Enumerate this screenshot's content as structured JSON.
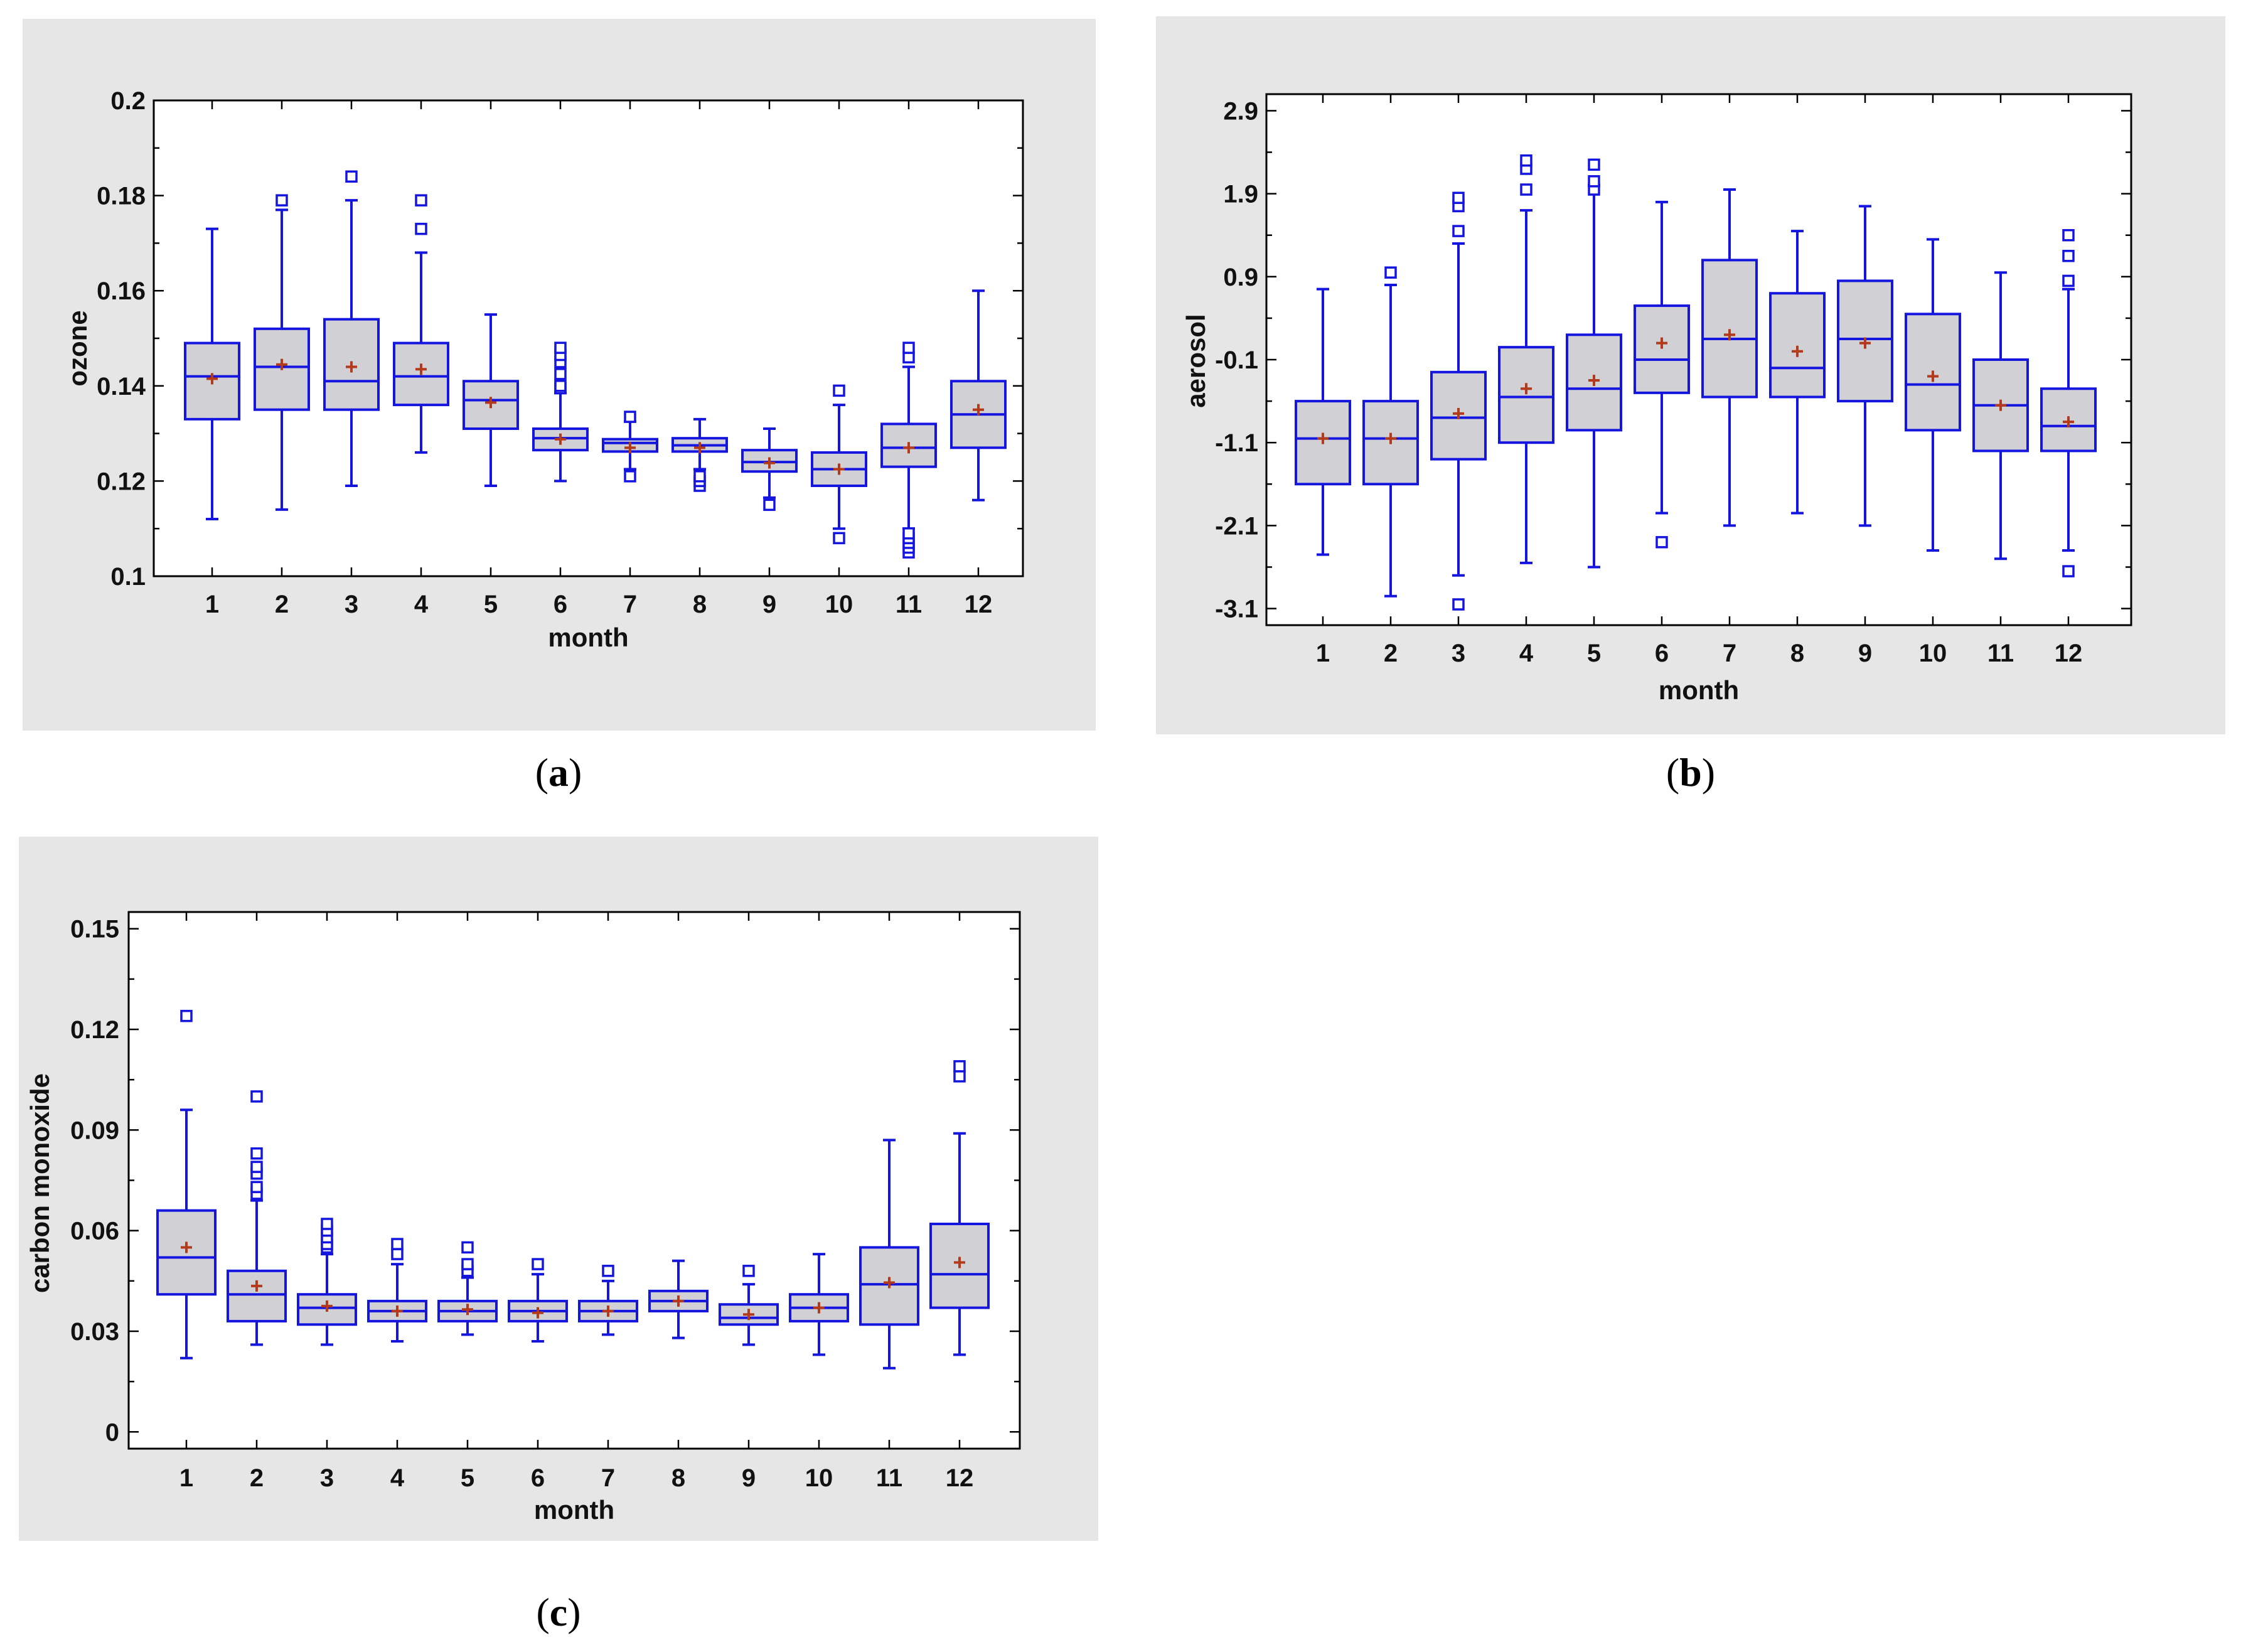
{
  "figure": {
    "captions": [
      {
        "open": "(",
        "letter": "a",
        "close": ")"
      },
      {
        "open": "(",
        "letter": "b",
        "close": ")"
      },
      {
        "open": "(",
        "letter": "c",
        "close": ")"
      }
    ]
  },
  "chart_data": [
    {
      "id": "a",
      "type": "boxplot",
      "title": "",
      "xlabel": "month",
      "ylabel": "ozone",
      "ylim": [
        0.1,
        0.2
      ],
      "yticks": [
        0.1,
        0.12,
        0.14,
        0.16,
        0.18,
        0.2
      ],
      "ytick_labels": [
        "0.1",
        "0.12",
        "0.14",
        "0.16",
        "0.18",
        "0.2"
      ],
      "categories": [
        "1",
        "2",
        "3",
        "4",
        "5",
        "6",
        "7",
        "8",
        "9",
        "10",
        "11",
        "12"
      ],
      "boxes": [
        {
          "min": 0.112,
          "q1": 0.133,
          "median": 0.142,
          "q3": 0.149,
          "max": 0.173,
          "mean": 0.1415,
          "outliers": []
        },
        {
          "min": 0.114,
          "q1": 0.135,
          "median": 0.144,
          "q3": 0.152,
          "max": 0.177,
          "mean": 0.1445,
          "outliers": [
            0.179
          ]
        },
        {
          "min": 0.119,
          "q1": 0.135,
          "median": 0.141,
          "q3": 0.154,
          "max": 0.179,
          "mean": 0.144,
          "outliers": [
            0.184
          ]
        },
        {
          "min": 0.126,
          "q1": 0.136,
          "median": 0.142,
          "q3": 0.149,
          "max": 0.168,
          "mean": 0.1435,
          "outliers": [
            0.173,
            0.179
          ]
        },
        {
          "min": 0.119,
          "q1": 0.131,
          "median": 0.137,
          "q3": 0.141,
          "max": 0.155,
          "mean": 0.1365,
          "outliers": []
        },
        {
          "min": 0.12,
          "q1": 0.1265,
          "median": 0.129,
          "q3": 0.131,
          "max": 0.1385,
          "mean": 0.1288,
          "outliers": [
            0.1395,
            0.14,
            0.1425,
            0.145,
            0.1465,
            0.148
          ]
        },
        {
          "min": 0.1225,
          "q1": 0.1262,
          "median": 0.128,
          "q3": 0.1288,
          "max": 0.1325,
          "mean": 0.127,
          "outliers": [
            0.121,
            0.1335
          ]
        },
        {
          "min": 0.1225,
          "q1": 0.1262,
          "median": 0.1275,
          "q3": 0.129,
          "max": 0.133,
          "mean": 0.127,
          "outliers": [
            0.119,
            0.12,
            0.121
          ]
        },
        {
          "min": 0.1165,
          "q1": 0.122,
          "median": 0.124,
          "q3": 0.1265,
          "max": 0.131,
          "mean": 0.1238,
          "outliers": [
            0.115
          ]
        },
        {
          "min": 0.11,
          "q1": 0.119,
          "median": 0.1225,
          "q3": 0.126,
          "max": 0.136,
          "mean": 0.1225,
          "outliers": [
            0.108,
            0.139
          ]
        },
        {
          "min": 0.11,
          "q1": 0.123,
          "median": 0.127,
          "q3": 0.132,
          "max": 0.144,
          "mean": 0.127,
          "outliers": [
            0.105,
            0.106,
            0.107,
            0.108,
            0.109,
            0.146,
            0.148
          ]
        },
        {
          "min": 0.116,
          "q1": 0.127,
          "median": 0.134,
          "q3": 0.141,
          "max": 0.16,
          "mean": 0.135,
          "outliers": []
        }
      ]
    },
    {
      "id": "b",
      "type": "boxplot",
      "title": "",
      "xlabel": "month",
      "ylabel": "aerosol",
      "ylim": [
        -3.3,
        3.1
      ],
      "yticks": [
        -3.1,
        -2.1,
        -1.1,
        -0.1,
        0.9,
        1.9,
        2.9
      ],
      "ytick_labels": [
        "-3.1",
        "-2.1",
        "-1.1",
        "-0.1",
        "0.9",
        "1.9",
        "2.9"
      ],
      "categories": [
        "1",
        "2",
        "3",
        "4",
        "5",
        "6",
        "7",
        "8",
        "9",
        "10",
        "11",
        "12"
      ],
      "boxes": [
        {
          "min": -2.45,
          "q1": -1.6,
          "median": -1.05,
          "q3": -0.6,
          "max": 0.75,
          "mean": -1.05,
          "outliers": []
        },
        {
          "min": -2.95,
          "q1": -1.6,
          "median": -1.05,
          "q3": -0.6,
          "max": 0.8,
          "mean": -1.05,
          "outliers": [
            0.95
          ]
        },
        {
          "min": -2.7,
          "q1": -1.3,
          "median": -0.8,
          "q3": -0.25,
          "max": 1.3,
          "mean": -0.75,
          "outliers": [
            -3.05,
            1.45,
            1.75,
            1.85
          ]
        },
        {
          "min": -2.55,
          "q1": -1.1,
          "median": -0.55,
          "q3": 0.05,
          "max": 1.7,
          "mean": -0.45,
          "outliers": [
            1.95,
            2.2,
            2.3
          ]
        },
        {
          "min": -2.6,
          "q1": -0.95,
          "median": -0.45,
          "q3": 0.2,
          "max": 2.0,
          "mean": -0.35,
          "outliers": [
            1.95,
            2.05,
            2.25
          ]
        },
        {
          "min": -1.95,
          "q1": -0.5,
          "median": -0.1,
          "q3": 0.55,
          "max": 1.8,
          "mean": 0.1,
          "outliers": [
            -2.3
          ]
        },
        {
          "min": -2.1,
          "q1": -0.55,
          "median": 0.15,
          "q3": 1.1,
          "max": 1.95,
          "mean": 0.2,
          "outliers": []
        },
        {
          "min": -1.95,
          "q1": -0.55,
          "median": -0.2,
          "q3": 0.7,
          "max": 1.45,
          "mean": 0.0,
          "outliers": []
        },
        {
          "min": -2.1,
          "q1": -0.6,
          "median": 0.15,
          "q3": 0.85,
          "max": 1.75,
          "mean": 0.1,
          "outliers": []
        },
        {
          "min": -2.4,
          "q1": -0.95,
          "median": -0.4,
          "q3": 0.45,
          "max": 1.35,
          "mean": -0.3,
          "outliers": []
        },
        {
          "min": -2.5,
          "q1": -1.2,
          "median": -0.65,
          "q3": -0.1,
          "max": 0.95,
          "mean": -0.65,
          "outliers": []
        },
        {
          "min": -2.4,
          "q1": -1.2,
          "median": -0.9,
          "q3": -0.45,
          "max": 0.75,
          "mean": -0.85,
          "outliers": [
            -2.65,
            0.85,
            1.15,
            1.4
          ]
        }
      ]
    },
    {
      "id": "c",
      "type": "boxplot",
      "title": "",
      "xlabel": "month",
      "ylabel": "carbon monoxide",
      "ylim": [
        -0.005,
        0.155
      ],
      "yticks": [
        0,
        0.03,
        0.06,
        0.09,
        0.12,
        0.15
      ],
      "ytick_labels": [
        "0",
        "0.03",
        "0.06",
        "0.09",
        "0.12",
        "0.15"
      ],
      "categories": [
        "1",
        "2",
        "3",
        "4",
        "5",
        "6",
        "7",
        "8",
        "9",
        "10",
        "11",
        "12"
      ],
      "boxes": [
        {
          "min": 0.022,
          "q1": 0.041,
          "median": 0.052,
          "q3": 0.066,
          "max": 0.096,
          "mean": 0.055,
          "outliers": [
            0.124
          ]
        },
        {
          "min": 0.026,
          "q1": 0.033,
          "median": 0.041,
          "q3": 0.048,
          "max": 0.069,
          "mean": 0.0435,
          "outliers": [
            0.071,
            0.073,
            0.077,
            0.079,
            0.083,
            0.1
          ]
        },
        {
          "min": 0.026,
          "q1": 0.032,
          "median": 0.037,
          "q3": 0.041,
          "max": 0.053,
          "mean": 0.0375,
          "outliers": [
            0.055,
            0.056,
            0.058,
            0.06,
            0.062
          ]
        },
        {
          "min": 0.027,
          "q1": 0.033,
          "median": 0.036,
          "q3": 0.039,
          "max": 0.05,
          "mean": 0.036,
          "outliers": [
            0.053,
            0.056
          ]
        },
        {
          "min": 0.029,
          "q1": 0.033,
          "median": 0.036,
          "q3": 0.039,
          "max": 0.046,
          "mean": 0.0365,
          "outliers": [
            0.048,
            0.05,
            0.055
          ]
        },
        {
          "min": 0.027,
          "q1": 0.033,
          "median": 0.036,
          "q3": 0.039,
          "max": 0.047,
          "mean": 0.0355,
          "outliers": [
            0.05
          ]
        },
        {
          "min": 0.029,
          "q1": 0.033,
          "median": 0.036,
          "q3": 0.039,
          "max": 0.045,
          "mean": 0.036,
          "outliers": [
            0.048
          ]
        },
        {
          "min": 0.028,
          "q1": 0.036,
          "median": 0.039,
          "q3": 0.042,
          "max": 0.051,
          "mean": 0.039,
          "outliers": []
        },
        {
          "min": 0.026,
          "q1": 0.032,
          "median": 0.034,
          "q3": 0.038,
          "max": 0.044,
          "mean": 0.035,
          "outliers": [
            0.048
          ]
        },
        {
          "min": 0.023,
          "q1": 0.033,
          "median": 0.037,
          "q3": 0.041,
          "max": 0.053,
          "mean": 0.037,
          "outliers": []
        },
        {
          "min": 0.019,
          "q1": 0.032,
          "median": 0.044,
          "q3": 0.055,
          "max": 0.087,
          "mean": 0.0445,
          "outliers": []
        },
        {
          "min": 0.023,
          "q1": 0.037,
          "median": 0.047,
          "q3": 0.062,
          "max": 0.089,
          "mean": 0.0505,
          "outliers": [
            0.106,
            0.109
          ]
        }
      ]
    }
  ]
}
